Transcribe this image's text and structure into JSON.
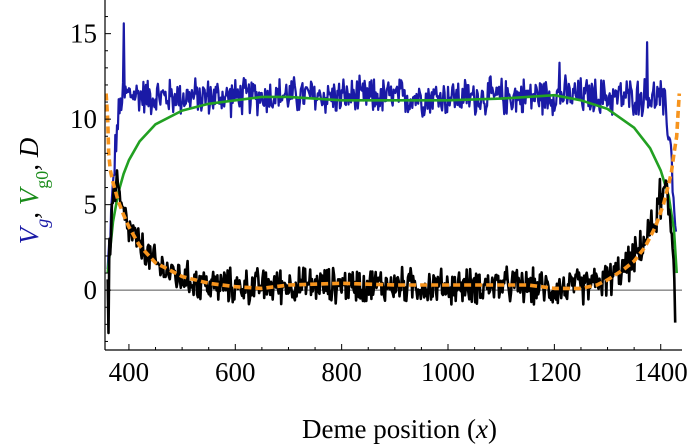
{
  "chart_data": {
    "type": "line",
    "xlabel": "Deme position",
    "xlabel_var": "x",
    "ylabel_parts": [
      {
        "text": "V",
        "sub": "g",
        "color": "#1a1aa6"
      },
      {
        "text": ", ",
        "sub": "",
        "color": "#000000"
      },
      {
        "text": "V",
        "sub": "g0",
        "color": "#1a8c1a"
      },
      {
        "text": ", ",
        "sub": "",
        "color": "#000000"
      },
      {
        "text": "D",
        "sub": "",
        "color": "#000000"
      }
    ],
    "xlim": [
      355,
      1440
    ],
    "ylim": [
      -3.5,
      16.5
    ],
    "x_ticks": [
      400,
      600,
      800,
      1000,
      1200,
      1400
    ],
    "y_ticks": [
      0,
      5,
      10,
      15
    ],
    "grid": false,
    "zero_line": true,
    "series": [
      {
        "role": "Vg",
        "color": "#1a1aa6",
        "style": "noisy",
        "mean_x": [
          360,
          365,
          370,
          375,
          380,
          385,
          390,
          400,
          420,
          450,
          500,
          600,
          700,
          800,
          900,
          1000,
          1100,
          1200,
          1300,
          1350,
          1380,
          1400,
          1410,
          1420,
          1425,
          1430
        ],
        "mean_y": [
          1.0,
          3.5,
          6.0,
          8.5,
          10.0,
          11.0,
          11.4,
          11.5,
          11.4,
          11.3,
          11.3,
          11.3,
          11.4,
          11.3,
          11.3,
          11.3,
          11.3,
          11.4,
          11.3,
          11.3,
          11.3,
          11.2,
          10.5,
          8.0,
          5.0,
          2.5
        ],
        "noise_amplitude": 0.9,
        "spikes": [
          [
            390,
            15.6
          ],
          [
            1375,
            14.5
          ],
          [
            1210,
            13.3
          ]
        ]
      },
      {
        "role": "Vg0",
        "color": "#22a022",
        "style": "smooth",
        "x": [
          360,
          370,
          380,
          390,
          400,
          420,
          450,
          500,
          550,
          600,
          650,
          700,
          800,
          900,
          1000,
          1100,
          1150,
          1200,
          1250,
          1300,
          1350,
          1380,
          1400,
          1415,
          1425,
          1430
        ],
        "y": [
          1.0,
          4.0,
          5.7,
          6.8,
          7.6,
          8.7,
          9.7,
          10.5,
          10.9,
          11.1,
          11.3,
          11.3,
          11.1,
          11.1,
          11.1,
          11.2,
          11.3,
          11.4,
          11.1,
          10.6,
          9.5,
          8.3,
          7.0,
          5.5,
          3.5,
          1.0
        ]
      },
      {
        "role": "D",
        "color": "#000000",
        "style": "noisy",
        "mean_x": [
          360,
          365,
          370,
          375,
          380,
          390,
          400,
          420,
          450,
          500,
          550,
          600,
          700,
          800,
          900,
          1000,
          1100,
          1200,
          1250,
          1300,
          1330,
          1360,
          1380,
          1400,
          1410,
          1420,
          1428
        ],
        "mean_y": [
          1.0,
          3.0,
          5.5,
          6.0,
          5.5,
          4.3,
          3.6,
          2.6,
          1.5,
          0.7,
          0.3,
          0.2,
          0.3,
          0.3,
          0.3,
          0.2,
          0.3,
          0.1,
          0.2,
          0.6,
          1.2,
          2.3,
          3.4,
          5.0,
          6.0,
          3.5,
          0.5
        ],
        "noise_amplitude": 0.85,
        "spikes": [
          [
            362,
            -2.5
          ],
          [
            1428,
            -1.9
          ],
          [
            378,
            7.0
          ],
          [
            1398,
            6.5
          ]
        ]
      },
      {
        "role": "D0",
        "color": "#f7941d",
        "style": "dashed",
        "x": [
          357,
          360,
          362,
          365,
          370,
          380,
          390,
          400,
          420,
          450,
          500,
          550,
          600,
          650,
          700,
          800,
          900,
          1000,
          1100,
          1150,
          1200,
          1250,
          1280,
          1300,
          1330,
          1350,
          1370,
          1390,
          1405,
          1415,
          1420,
          1425,
          1430,
          1432,
          1435
        ],
        "y": [
          11.5,
          10.0,
          8.0,
          7.0,
          6.3,
          5.2,
          4.4,
          3.7,
          2.6,
          1.6,
          0.8,
          0.4,
          0.2,
          0.1,
          0.3,
          0.4,
          0.3,
          0.3,
          0.3,
          0.3,
          0.1,
          0.1,
          0.3,
          0.6,
          1.2,
          1.7,
          2.5,
          3.7,
          5.0,
          6.2,
          6.9,
          8.0,
          9.0,
          10.0,
          11.5
        ]
      }
    ]
  }
}
